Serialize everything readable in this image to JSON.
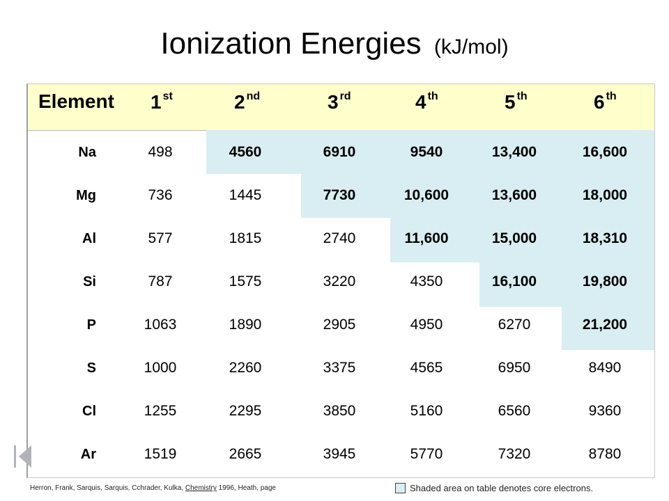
{
  "title": {
    "main": "Ionization Energies",
    "unit": "(kJ/mol)"
  },
  "chart_data": {
    "type": "table",
    "columns": [
      {
        "base": "Element",
        "sup": ""
      },
      {
        "base": "1",
        "sup": "st"
      },
      {
        "base": "2",
        "sup": "nd"
      },
      {
        "base": "3",
        "sup": "rd"
      },
      {
        "base": "4",
        "sup": "th"
      },
      {
        "base": "5",
        "sup": "th"
      },
      {
        "base": "6",
        "sup": "th"
      }
    ],
    "rows": [
      {
        "element": "Na",
        "values": [
          "498",
          "4560",
          "6910",
          "9540",
          "13,400",
          "16,600"
        ]
      },
      {
        "element": "Mg",
        "values": [
          "736",
          "1445",
          "7730",
          "10,600",
          "13,600",
          "18,000"
        ]
      },
      {
        "element": "Al",
        "values": [
          "577",
          "1815",
          "2740",
          "11,600",
          "15,000",
          "18,310"
        ]
      },
      {
        "element": "Si",
        "values": [
          "787",
          "1575",
          "3220",
          "4350",
          "16,100",
          "19,800"
        ]
      },
      {
        "element": "P",
        "values": [
          "1063",
          "1890",
          "2905",
          "4950",
          "6270",
          "21,200"
        ]
      },
      {
        "element": "S",
        "values": [
          "1000",
          "2260",
          "3375",
          "4565",
          "6950",
          "8490"
        ]
      },
      {
        "element": "Cl",
        "values": [
          "1255",
          "2295",
          "3850",
          "5160",
          "6560",
          "9360"
        ]
      },
      {
        "element": "Ar",
        "values": [
          "1519",
          "2665",
          "3945",
          "5770",
          "7320",
          "8780"
        ]
      }
    ],
    "core_electron_start_column": [
      2,
      3,
      4,
      5,
      6,
      7,
      8,
      9
    ],
    "colors": {
      "header_band": "#ffffcc",
      "shaded_core": "#d9eef2"
    }
  },
  "footer": {
    "credit_prefix": "Herron, Frank, Sarquis, Sarquis, Cchrader, Kulka, ",
    "credit_book": "Chemistry",
    "credit_suffix": " 1996, Heath, page",
    "note": "Shaded area on table denotes core electrons."
  },
  "icons": {
    "nav": "first-slide-icon"
  }
}
